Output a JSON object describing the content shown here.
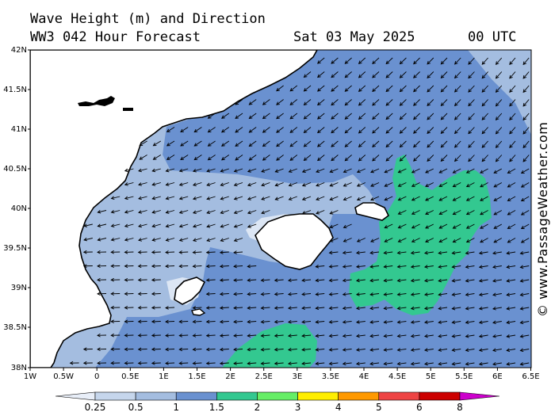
{
  "title": "Wave Height (m) and Direction",
  "subtitle_model": "WW3 042 Hour Forecast",
  "subtitle_date": "Sat 03 May 2025",
  "subtitle_time": "00 UTC",
  "credit": "© www.PassageWeather.com",
  "lat_labels": [
    "42N",
    "41.5N",
    "41N",
    "40.5N",
    "40N",
    "39.5N",
    "39N",
    "38.5N",
    "38N"
  ],
  "lon_labels": [
    "1W",
    "0.5W",
    "0",
    "0.5E",
    "1E",
    "1.5E",
    "2E",
    "2.5E",
    "3E",
    "3.5E",
    "4E",
    "4.5E",
    "5E",
    "5.5E",
    "6E",
    "6.5E"
  ],
  "colorbar": {
    "labels": [
      "0.25",
      "0.5",
      "1",
      "1.5",
      "2",
      "3",
      "4",
      "5",
      "6",
      "8"
    ],
    "colors": [
      "#e8eef8",
      "#c6d6ec",
      "#a4bde0",
      "#6a91d0",
      "#33c890",
      "#66ee66",
      "#ffee00",
      "#ff9900",
      "#ee4444",
      "#cc0000",
      "#cc00cc"
    ]
  },
  "map_colors": {
    "land": "#ffffff",
    "sea_1_1_5": "#6a91d0",
    "sea_0_5_1": "#a4bde0",
    "sea_0_25_0_5": "#dce6f4",
    "sea_1_5_2": "#33c890"
  },
  "arrow_direction": "from east (pointing west / north-west)"
}
